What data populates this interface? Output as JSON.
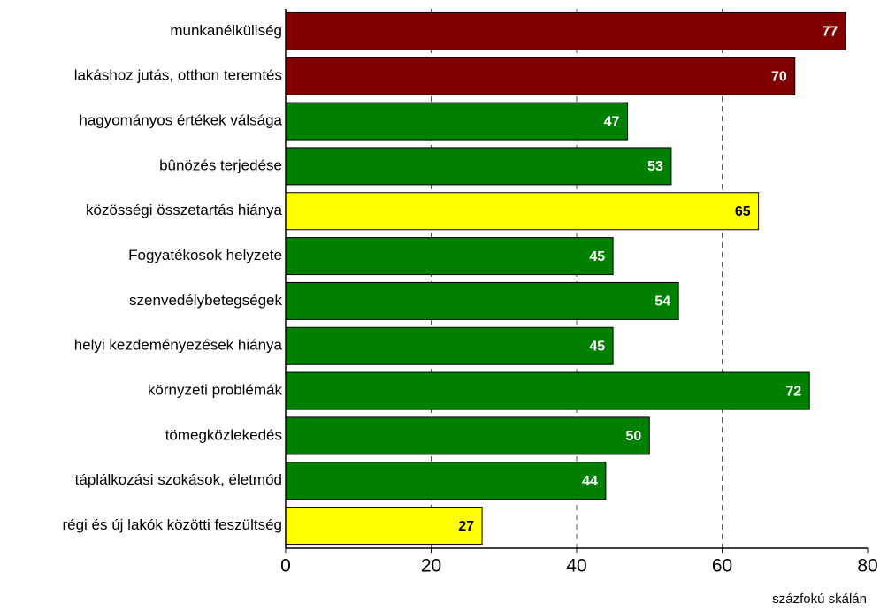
{
  "chart_data": {
    "type": "barh",
    "categories": [
      "munkanélküliség",
      "lakáshoz jutás, otthon teremtés",
      "hagyományos értékek válsága",
      "bûnözés terjedése",
      "közösségi összetartás hiánya",
      "Fogyatékosok helyzete",
      "szenvedélybetegségek",
      "helyi kezdeményezések hiánya",
      "környzeti problémák",
      "tömegközlekedés",
      "táplálkozási szokások, életmód",
      "régi és új lakók közötti feszültség"
    ],
    "values": [
      77,
      70,
      47,
      53,
      65,
      45,
      54,
      45,
      72,
      50,
      44,
      27
    ],
    "colors": [
      "#800000",
      "#800000",
      "#008000",
      "#008000",
      "#ffff00",
      "#008000",
      "#008000",
      "#008000",
      "#008000",
      "#008000",
      "#008000",
      "#ffff00"
    ],
    "xlim": [
      0,
      80
    ],
    "xticks": [
      0,
      20,
      40,
      60,
      80
    ],
    "grid": true,
    "xlabel": "százfokú skálán"
  }
}
